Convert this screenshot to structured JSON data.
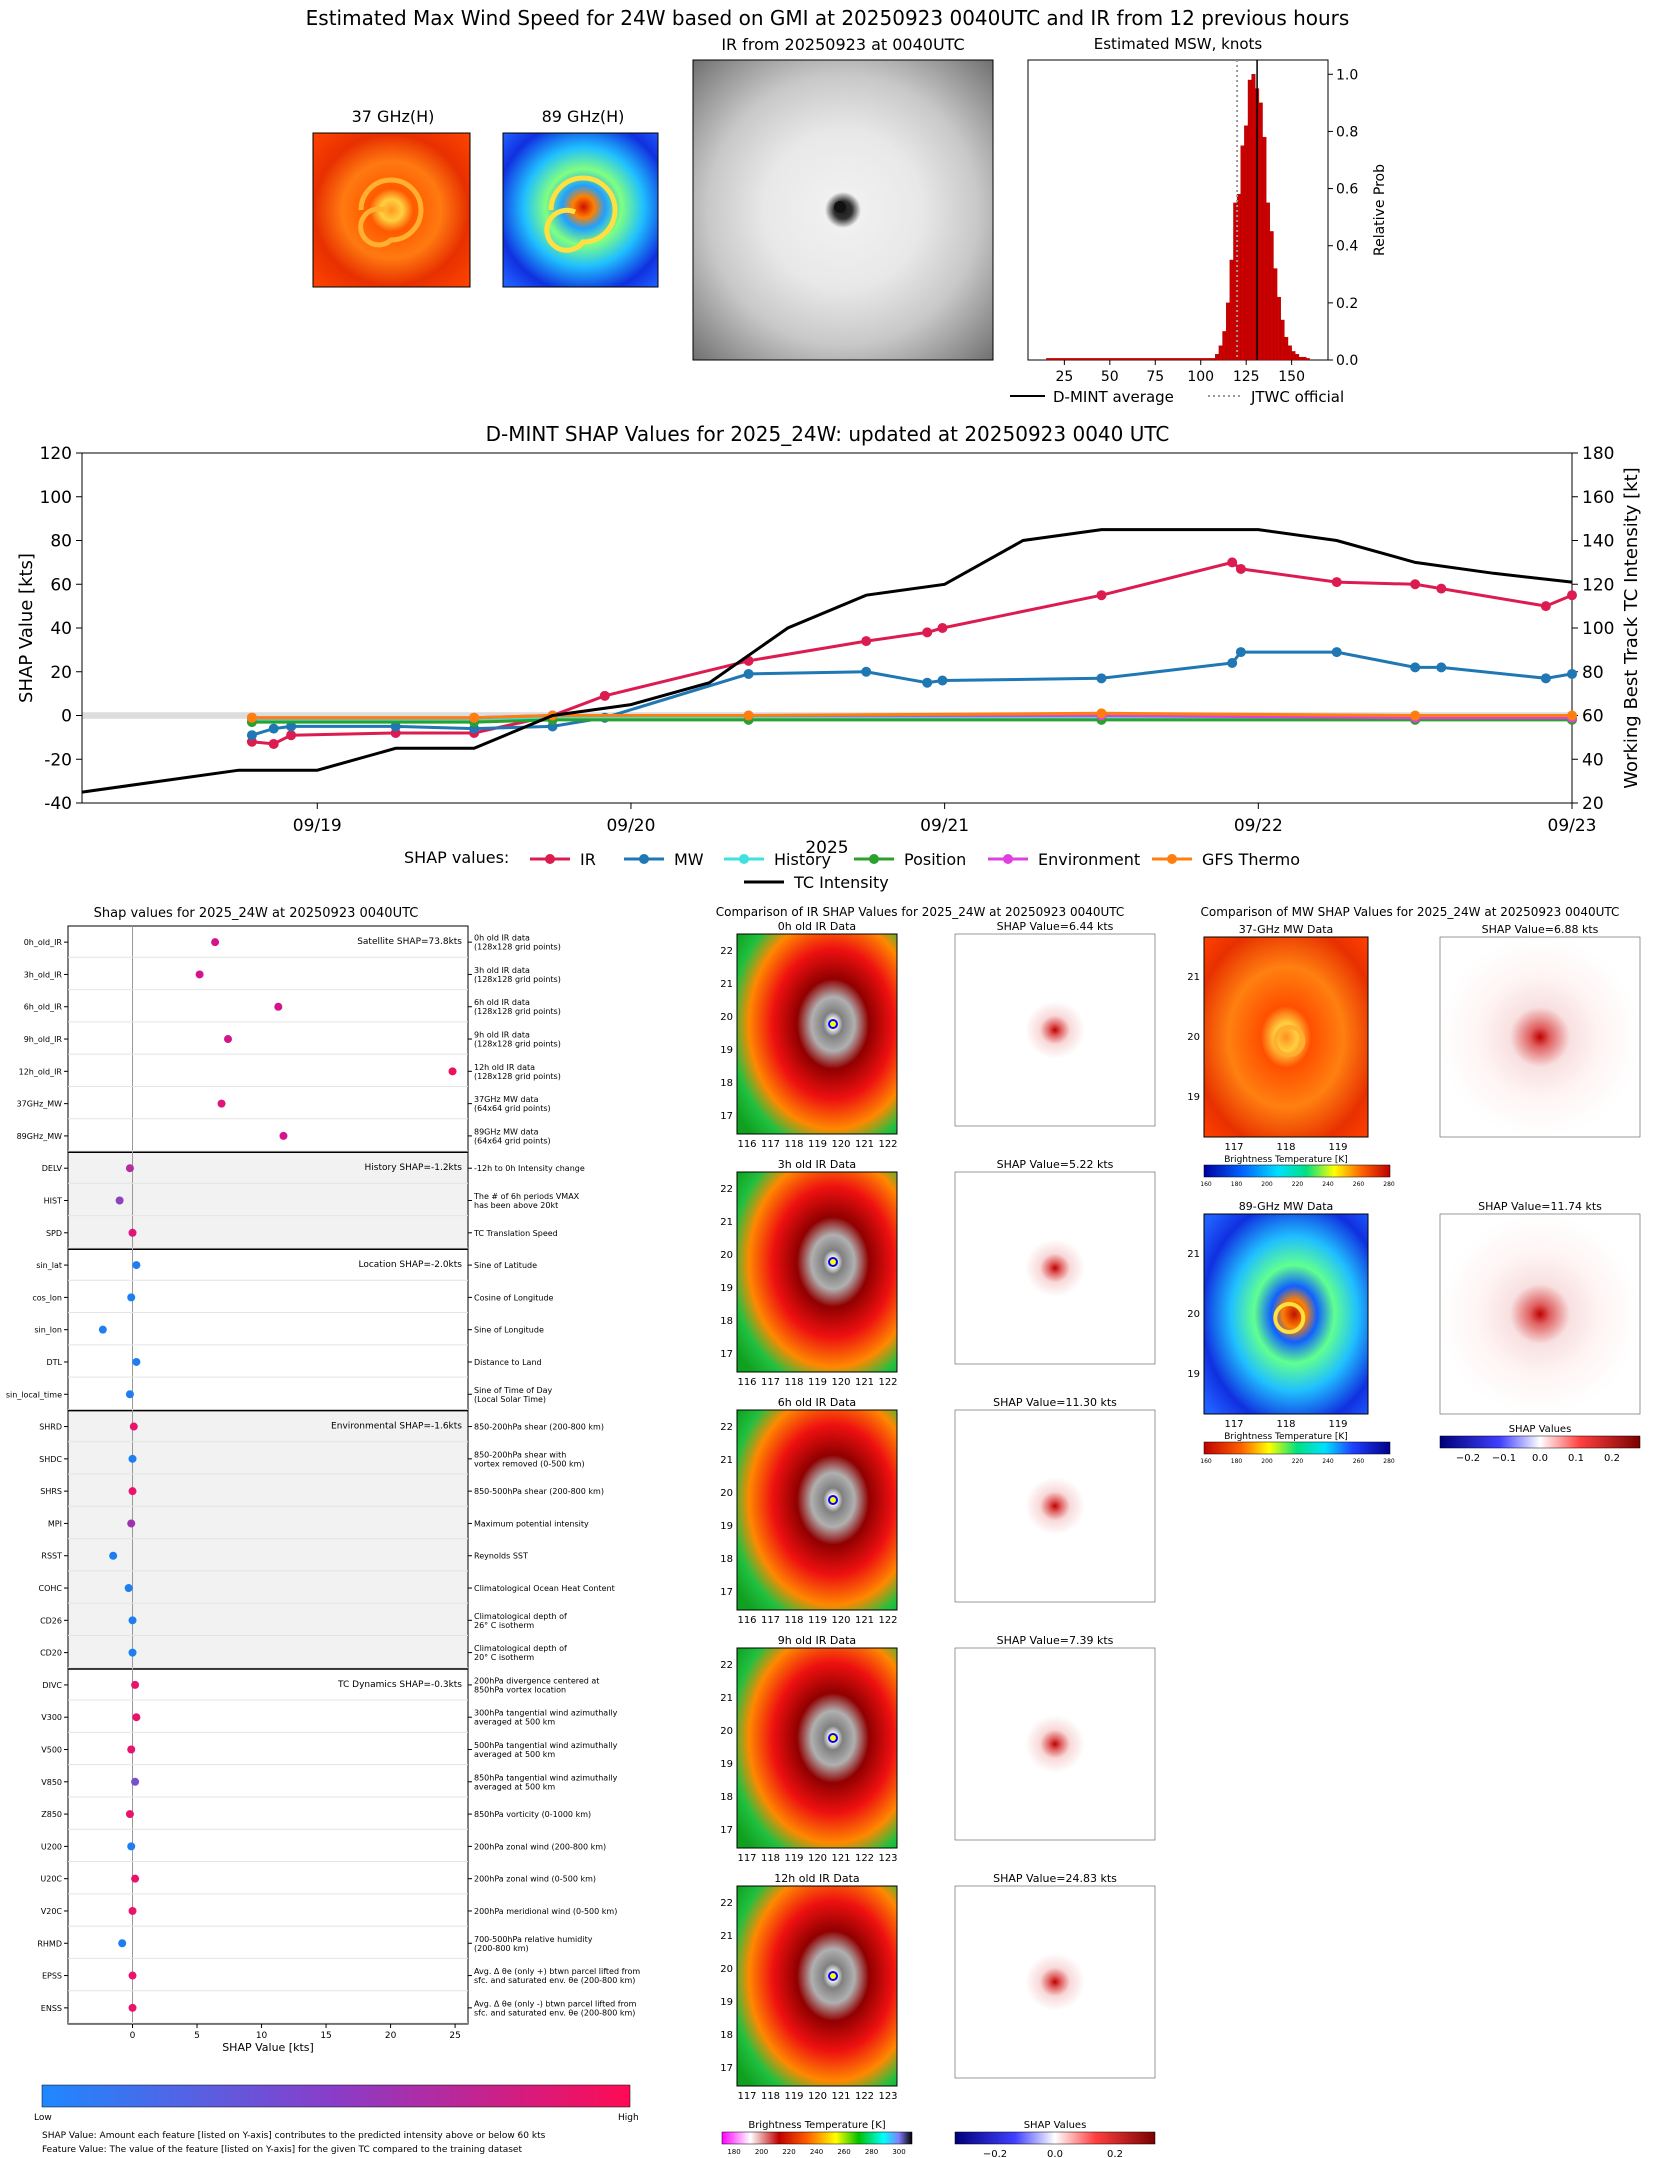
{
  "header": {
    "title": "Estimated Max Wind Speed for 24W based on GMI at 20250923 0040UTC and IR from 12 previous hours",
    "mw37_title": "37 GHz(H)",
    "mw89_title": "89 GHz(H)",
    "ir_title": "IR from 20250923 at 0040UTC",
    "prob_title": "Estimated MSW, knots",
    "prob_ylabel": "Relative Prob",
    "legend_avg": "D-MINT average",
    "legend_jtwc": "JTWC official"
  },
  "shap_ts_header": {
    "title": "D-MINT SHAP Values for 2025_24W: updated at 20250923 0040 UTC",
    "xlabel": "2025",
    "ylabel_left": "SHAP Value [kts]",
    "ylabel_right": "Working Best Track TC Intensity [kt]",
    "legend_prefix": "SHAP values:"
  },
  "feature_panel": {
    "title": "Shap values for 2025_24W at 20250923 0040UTC",
    "xlabel": "SHAP Value [kts]",
    "colorbar_low": "Low",
    "colorbar_high": "High",
    "note1": "SHAP Value: Amount each feature [listed on Y-axis] contributes to the predicted intensity above or below 60 kts",
    "note2": "Feature Value: The value of the feature [listed on Y-axis] for the given TC compared to the training dataset",
    "groups": [
      {
        "label": "Satellite SHAP=73.8kts"
      },
      {
        "label": "History SHAP=-1.2kts"
      },
      {
        "label": "Location SHAP=-2.0kts"
      },
      {
        "label": "Environmental SHAP=-1.6kts"
      },
      {
        "label": "TC Dynamics SHAP=-0.3kts"
      }
    ]
  },
  "ir_compare": {
    "title": "Comparison of IR SHAP Values for 2025_24W at 20250923 0040UTC",
    "panels": [
      {
        "img_title": "0h old IR Data",
        "shap_title": "SHAP Value=6.44 kts",
        "xticks": [
          "116",
          "117",
          "118",
          "119",
          "120",
          "121",
          "122"
        ]
      },
      {
        "img_title": "3h old IR Data",
        "shap_title": "SHAP Value=5.22 kts",
        "xticks": [
          "116",
          "117",
          "118",
          "119",
          "120",
          "121",
          "122"
        ]
      },
      {
        "img_title": "6h old IR Data",
        "shap_title": "SHAP Value=11.30 kts",
        "xticks": [
          "116",
          "117",
          "118",
          "119",
          "120",
          "121",
          "122"
        ]
      },
      {
        "img_title": "9h old IR Data",
        "shap_title": "SHAP Value=7.39 kts",
        "xticks": [
          "117",
          "118",
          "119",
          "120",
          "121",
          "122",
          "123"
        ]
      },
      {
        "img_title": "12h old IR Data",
        "shap_title": "SHAP Value=24.83 kts",
        "xticks": [
          "117",
          "118",
          "119",
          "120",
          "121",
          "122",
          "123"
        ]
      }
    ],
    "yticks": [
      "17",
      "18",
      "19",
      "20",
      "21",
      "22"
    ],
    "cbar_label": "Brightness Temperature [K]",
    "cbar_ticks": [
      "180",
      "200",
      "220",
      "240",
      "260",
      "280",
      "300"
    ],
    "shap_cbar_label": "SHAP Values",
    "shap_cbar_ticks": [
      "−0.2",
      "0.0",
      "0.2"
    ]
  },
  "mw_compare": {
    "title": "Comparison of MW SHAP Values for 2025_24W at 20250923 0040UTC",
    "panels": [
      {
        "img_title": "37-GHz MW Data",
        "shap_title": "SHAP Value=6.88 kts"
      },
      {
        "img_title": "89-GHz MW Data",
        "shap_title": "SHAP Value=11.74 kts"
      }
    ],
    "xticks": [
      "117",
      "118",
      "119"
    ],
    "yticks": [
      "19",
      "20",
      "21"
    ],
    "cbar_label": "Brightness Temperature [K]",
    "cbar_ticks": [
      "160",
      "180",
      "200",
      "220",
      "240",
      "260",
      "280"
    ],
    "shap_cbar_label": "SHAP Values",
    "shap_cbar_ticks": [
      "−0.2",
      "−0.1",
      "0.0",
      "0.1",
      "0.2"
    ]
  },
  "colors": {
    "IR": "#dc1c50",
    "MW": "#1f77b4",
    "History": "#40e0e0",
    "Position": "#2ca02c",
    "Environment": "#e040e0",
    "GFS Thermo": "#ff7f0e",
    "TC Intensity": "#000000"
  },
  "chart_data": [
    {
      "type": "bar",
      "title": "Estimated MSW, knots",
      "ylabel": "Relative Prob",
      "xlim": [
        5,
        170
      ],
      "ylim": [
        0,
        1.05
      ],
      "xticks": [
        25,
        50,
        75,
        100,
        125,
        150
      ],
      "yticks": [
        0.0,
        0.2,
        0.4,
        0.6,
        0.8,
        1.0
      ],
      "bins": [
        108,
        110,
        112,
        114,
        116,
        118,
        120,
        122,
        124,
        126,
        128,
        130,
        132,
        134,
        136,
        138,
        140,
        142,
        144,
        146,
        148,
        150,
        152,
        154,
        156
      ],
      "values": [
        0.02,
        0.05,
        0.1,
        0.2,
        0.35,
        0.55,
        0.58,
        0.75,
        0.82,
        0.98,
        1.0,
        0.95,
        0.9,
        0.78,
        0.55,
        0.45,
        0.32,
        0.22,
        0.14,
        0.08,
        0.05,
        0.03,
        0.02,
        0.01,
        0.01
      ],
      "baseline_x": [
        15,
        160
      ],
      "dmint_avg": 131,
      "jtwc_official": 120
    },
    {
      "type": "line",
      "title": "D-MINT SHAP Values for 2025_24W: updated at 20250923 0040 UTC",
      "xlabel": "2025",
      "ylabel": "SHAP Value [kts]",
      "ylabel_right": "Working Best Track TC Intensity [kt]",
      "xlim": [
        "2025-09-18 06:00",
        "2025-09-23 00:00"
      ],
      "ylim": [
        -40,
        120
      ],
      "ylim_right": [
        20,
        180
      ],
      "xticks": [
        "09/19",
        "09/20",
        "09/21",
        "09/22",
        "09/23"
      ],
      "yticks": [
        -40,
        -20,
        0,
        20,
        40,
        60,
        80,
        100,
        120
      ],
      "yticks_right": [
        20,
        40,
        60,
        80,
        100,
        120,
        140,
        160,
        180
      ],
      "series": [
        {
          "name": "IR",
          "x": [
            "09/18 19:00",
            "09/18 20:40",
            "09/18 22:00",
            "09/19 06:00",
            "09/19 12:00",
            "09/19 18:00",
            "09/19 22:00",
            "09/20 09:00",
            "09/20 18:00",
            "09/20 22:40",
            "09/20 23:50",
            "09/21 12:00",
            "09/21 22:00",
            "09/21 22:40",
            "09/22 06:00",
            "09/22 12:00",
            "09/22 14:00",
            "09/22 22:00",
            "09/23 00:00"
          ],
          "y": [
            -12,
            -13,
            -9,
            -8,
            -8,
            0,
            9,
            25,
            34,
            38,
            40,
            55,
            70,
            67,
            61,
            60,
            58,
            50,
            55
          ]
        },
        {
          "name": "MW",
          "x": [
            "09/18 19:00",
            "09/18 20:40",
            "09/18 22:00",
            "09/19 06:00",
            "09/19 12:00",
            "09/19 18:00",
            "09/19 22:00",
            "09/20 09:00",
            "09/20 18:00",
            "09/20 22:40",
            "09/20 23:50",
            "09/21 12:00",
            "09/21 22:00",
            "09/21 22:40",
            "09/22 06:00",
            "09/22 12:00",
            "09/22 14:00",
            "09/22 22:00",
            "09/23 00:00"
          ],
          "y": [
            -9,
            -6,
            -5,
            -5,
            -6,
            -5,
            -1,
            19,
            20,
            15,
            16,
            17,
            24,
            29,
            29,
            22,
            22,
            17,
            19
          ]
        },
        {
          "name": "History",
          "x": [
            "09/18 19:00",
            "09/19 12:00",
            "09/19 18:00",
            "09/20 09:00",
            "09/21 12:00",
            "09/22 12:00",
            "09/23 00:00"
          ],
          "y": [
            -2,
            -2,
            -1,
            -1,
            -1,
            -1,
            -1
          ]
        },
        {
          "name": "Position",
          "x": [
            "09/18 19:00",
            "09/19 12:00",
            "09/19 18:00",
            "09/20 09:00",
            "09/21 12:00",
            "09/22 12:00",
            "09/23 00:00"
          ],
          "y": [
            -3,
            -3,
            -2,
            -2,
            -2,
            -2,
            -2
          ]
        },
        {
          "name": "Environment",
          "x": [
            "09/18 19:00",
            "09/19 12:00",
            "09/19 18:00",
            "09/20 09:00",
            "09/21 12:00",
            "09/22 12:00",
            "09/23 00:00"
          ],
          "y": [
            -1,
            -1,
            0,
            0,
            0,
            -1,
            -1
          ]
        },
        {
          "name": "GFS Thermo",
          "x": [
            "09/18 19:00",
            "09/19 12:00",
            "09/19 18:00",
            "09/20 09:00",
            "09/21 12:00",
            "09/22 12:00",
            "09/23 00:00"
          ],
          "y": [
            -1,
            -1,
            0,
            0,
            1,
            0,
            0
          ]
        },
        {
          "name": "TC Intensity",
          "axis": "right",
          "x": [
            "09/18 06:00",
            "09/18 18:00",
            "09/19 00:00",
            "09/19 06:00",
            "09/19 12:00",
            "09/19 18:00",
            "09/20 00:00",
            "09/20 06:00",
            "09/20 12:00",
            "09/20 18:00",
            "09/21 00:00",
            "09/21 06:00",
            "09/21 12:00",
            "09/21 18:00",
            "09/22 00:00",
            "09/22 06:00",
            "09/22 12:00",
            "09/22 18:00",
            "09/23 00:00"
          ],
          "y": [
            25,
            35,
            35,
            45,
            45,
            60,
            65,
            75,
            100,
            115,
            120,
            140,
            145,
            145,
            145,
            140,
            130,
            125,
            121
          ]
        }
      ]
    },
    {
      "type": "scatter",
      "title": "Shap values for 2025_24W at 20250923 0040UTC",
      "xlabel": "SHAP Value [kts]",
      "xlim": [
        -5,
        26
      ],
      "xticks": [
        0,
        5,
        10,
        15,
        20,
        25
      ],
      "features": [
        {
          "name": "0h_old_IR",
          "desc": "0h old IR data\n(128x128 grid points)",
          "shap": 6.4,
          "group": 0,
          "color": "#d4148a"
        },
        {
          "name": "3h_old_IR",
          "desc": "3h old IR data\n(128x128 grid points)",
          "shap": 5.2,
          "group": 0,
          "color": "#d4148a"
        },
        {
          "name": "6h_old_IR",
          "desc": "6h old IR data\n(128x128 grid points)",
          "shap": 11.3,
          "group": 0,
          "color": "#d4148a"
        },
        {
          "name": "9h_old_IR",
          "desc": "9h old IR data\n(128x128 grid points)",
          "shap": 7.4,
          "group": 0,
          "color": "#d4148a"
        },
        {
          "name": "12h_old_IR",
          "desc": "12h old IR data\n(128x128 grid points)",
          "shap": 24.8,
          "group": 0,
          "color": "#ee1060"
        },
        {
          "name": "37GHz_MW",
          "desc": "37GHz MW data\n(64x64 grid points)",
          "shap": 6.9,
          "group": 0,
          "color": "#e0147a"
        },
        {
          "name": "89GHz_MW",
          "desc": "89GHz MW data\n(64x64 grid points)",
          "shap": 11.7,
          "group": 0,
          "color": "#d4148a"
        },
        {
          "name": "DELV",
          "desc": "-12h to 0h Intensity change",
          "shap": -0.2,
          "group": 1,
          "color": "#b42ea0"
        },
        {
          "name": "HIST",
          "desc": "The # of 6h periods VMAX\nhas been above 20kt",
          "shap": -1.0,
          "group": 1,
          "color": "#8a44c0"
        },
        {
          "name": "SPD",
          "desc": "TC Translation Speed",
          "shap": 0.0,
          "group": 1,
          "color": "#e0147a"
        },
        {
          "name": "sin_lat",
          "desc": "Sine of Latitude",
          "shap": 0.3,
          "group": 2,
          "color": "#1e7ef0"
        },
        {
          "name": "cos_lon",
          "desc": "Cosine of Longitude",
          "shap": -0.1,
          "group": 2,
          "color": "#1e7ef0"
        },
        {
          "name": "sin_lon",
          "desc": "Sine of Longitude",
          "shap": -2.3,
          "group": 2,
          "color": "#1e7ef0"
        },
        {
          "name": "DTL",
          "desc": "Distance to Land",
          "shap": 0.3,
          "group": 2,
          "color": "#1e7ef0"
        },
        {
          "name": "sin_local_time",
          "desc": "Sine of Time of Day\n(Local Solar Time)",
          "shap": -0.2,
          "group": 2,
          "color": "#1e7ef0"
        },
        {
          "name": "SHRD",
          "desc": "850-200hPa shear (200-800 km)",
          "shap": 0.1,
          "group": 3,
          "color": "#e8146c"
        },
        {
          "name": "SHDC",
          "desc": "850-200hPa shear with\nvortex removed (0-500 km)",
          "shap": 0.0,
          "group": 3,
          "color": "#1e7ef0"
        },
        {
          "name": "SHRS",
          "desc": "850-500hPa shear (200-800 km)",
          "shap": 0.0,
          "group": 3,
          "color": "#e8146c"
        },
        {
          "name": "MPI",
          "desc": "Maximum potential intensity",
          "shap": -0.1,
          "group": 3,
          "color": "#a030b0"
        },
        {
          "name": "RSST",
          "desc": "Reynolds SST",
          "shap": -1.5,
          "group": 3,
          "color": "#1e7ef0"
        },
        {
          "name": "COHC",
          "desc": "Climatological Ocean Heat Content",
          "shap": -0.3,
          "group": 3,
          "color": "#1e7ef0"
        },
        {
          "name": "CD26",
          "desc": "Climatological depth of\n26° C isotherm",
          "shap": 0.0,
          "group": 3,
          "color": "#1e7ef0"
        },
        {
          "name": "CD20",
          "desc": "Climatological depth of\n20° C isotherm",
          "shap": 0.0,
          "group": 3,
          "color": "#1e7ef0"
        },
        {
          "name": "DIVC",
          "desc": "200hPa divergence centered at\n850hPa vortex location",
          "shap": 0.2,
          "group": 4,
          "color": "#e8146c"
        },
        {
          "name": "V300",
          "desc": "300hPa tangential wind azimuthally\naveraged at 500 km",
          "shap": 0.3,
          "group": 4,
          "color": "#e8146c"
        },
        {
          "name": "V500",
          "desc": "500hPa tangential wind azimuthally\naveraged at 500 km",
          "shap": -0.1,
          "group": 4,
          "color": "#e8146c"
        },
        {
          "name": "V850",
          "desc": "850hPa tangential wind azimuthally\naveraged at 500 km",
          "shap": 0.2,
          "group": 4,
          "color": "#7a50c8"
        },
        {
          "name": "Z850",
          "desc": "850hPa vorticity (0-1000 km)",
          "shap": -0.2,
          "group": 4,
          "color": "#e8146c"
        },
        {
          "name": "U200",
          "desc": "200hPa zonal wind (200-800 km)",
          "shap": -0.1,
          "group": 4,
          "color": "#1e7ef0"
        },
        {
          "name": "U20C",
          "desc": "200hPa zonal wind (0-500 km)",
          "shap": 0.2,
          "group": 4,
          "color": "#e8146c"
        },
        {
          "name": "V20C",
          "desc": "200hPa meridional wind (0-500 km)",
          "shap": 0.0,
          "group": 4,
          "color": "#e8146c"
        },
        {
          "name": "RHMD",
          "desc": "700-500hPa relative humidity\n(200-800 km)",
          "shap": -0.8,
          "group": 4,
          "color": "#1e7ef0"
        },
        {
          "name": "EPSS",
          "desc": "Avg. Δ θe (only +) btwn parcel lifted from\nsfc. and saturated env. θe (200-800 km)",
          "shap": 0.0,
          "group": 4,
          "color": "#e8146c"
        },
        {
          "name": "ENSS",
          "desc": "Avg. Δ θe (only -) btwn parcel lifted from\nsfc. and saturated env. θe (200-800 km)",
          "shap": 0.0,
          "group": 4,
          "color": "#e8146c"
        }
      ]
    }
  ]
}
